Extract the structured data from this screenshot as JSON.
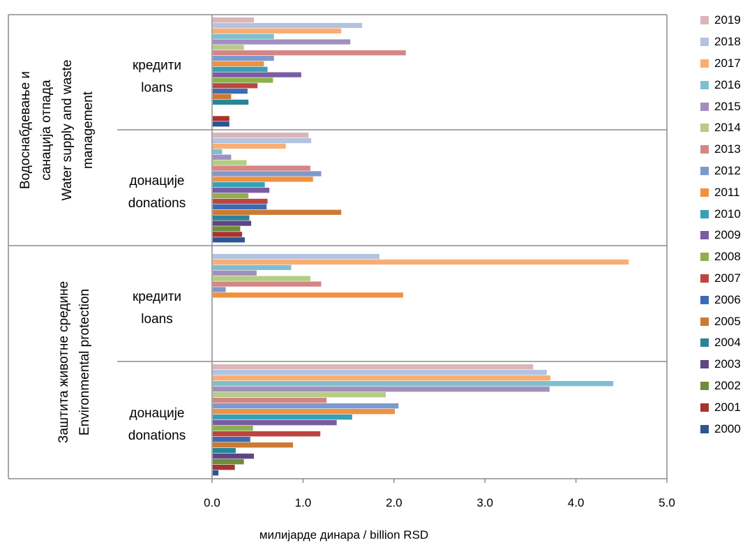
{
  "chart_data": {
    "type": "bar",
    "orientation": "horizontal",
    "xlabel": "милијарде динара / billion RSD",
    "xlim": [
      0,
      5
    ],
    "xticks": [
      "0.0",
      "1.0",
      "2.0",
      "3.0",
      "4.0",
      "5.0"
    ],
    "grid": false,
    "legend_position": "right",
    "groups": [
      {
        "label": [
          "Водоснабдевање и",
          "санација отпада",
          "Water supply and waste",
          "management"
        ],
        "categories": [
          {
            "label": [
              "кредити",
              "loans"
            ],
            "key": "ws_loans"
          },
          {
            "label": [
              "донације",
              "donations"
            ],
            "key": "ws_donations"
          }
        ]
      },
      {
        "label": [
          "Заштита животне средине",
          "Environmental protection"
        ],
        "categories": [
          {
            "label": [
              "кредити",
              "loans"
            ],
            "key": "ep_loans"
          },
          {
            "label": [
              "донације",
              "donations"
            ],
            "key": "ep_donations"
          }
        ]
      }
    ],
    "series": [
      {
        "name": "2019",
        "color": "#dab6b8",
        "values": {
          "ws_loans": 0.46,
          "ws_donations": 1.06,
          "ep_loans": 0,
          "ep_donations": 3.53
        }
      },
      {
        "name": "2018",
        "color": "#b4c3df",
        "values": {
          "ws_loans": 1.65,
          "ws_donations": 1.09,
          "ep_loans": 1.84,
          "ep_donations": 3.68
        }
      },
      {
        "name": "2017",
        "color": "#f9ad73",
        "values": {
          "ws_loans": 1.42,
          "ws_donations": 0.81,
          "ep_loans": 4.58,
          "ep_donations": 3.72
        }
      },
      {
        "name": "2016",
        "color": "#7ebfcf",
        "values": {
          "ws_loans": 0.68,
          "ws_donations": 0.11,
          "ep_loans": 0.87,
          "ep_donations": 4.41
        }
      },
      {
        "name": "2015",
        "color": "#a28fbd",
        "values": {
          "ws_loans": 1.52,
          "ws_donations": 0.21,
          "ep_loans": 0.49,
          "ep_donations": 3.71
        }
      },
      {
        "name": "2014",
        "color": "#b5cc86",
        "values": {
          "ws_loans": 0.35,
          "ws_donations": 0.38,
          "ep_loans": 1.08,
          "ep_donations": 1.91
        }
      },
      {
        "name": "2013",
        "color": "#d48685",
        "values": {
          "ws_loans": 2.13,
          "ws_donations": 1.08,
          "ep_loans": 1.2,
          "ep_donations": 1.26
        }
      },
      {
        "name": "2012",
        "color": "#7e99cc",
        "values": {
          "ws_loans": 0.68,
          "ws_donations": 1.2,
          "ep_loans": 0.15,
          "ep_donations": 2.05
        }
      },
      {
        "name": "2011",
        "color": "#f0913e",
        "values": {
          "ws_loans": 0.57,
          "ws_donations": 1.11,
          "ep_loans": 2.1,
          "ep_donations": 2.01
        }
      },
      {
        "name": "2010",
        "color": "#35a1b7",
        "values": {
          "ws_loans": 0.61,
          "ws_donations": 0.58,
          "ep_loans": 0,
          "ep_donations": 1.54
        }
      },
      {
        "name": "2009",
        "color": "#7a5ca3",
        "values": {
          "ws_loans": 0.98,
          "ws_donations": 0.63,
          "ep_loans": 0,
          "ep_donations": 1.37
        }
      },
      {
        "name": "2008",
        "color": "#8eb04c",
        "values": {
          "ws_loans": 0.67,
          "ws_donations": 0.4,
          "ep_loans": 0,
          "ep_donations": 0.45
        }
      },
      {
        "name": "2007",
        "color": "#bc4541",
        "values": {
          "ws_loans": 0.5,
          "ws_donations": 0.61,
          "ep_loans": 0,
          "ep_donations": 1.19
        }
      },
      {
        "name": "2006",
        "color": "#3c6bb3",
        "values": {
          "ws_loans": 0.39,
          "ws_donations": 0.6,
          "ep_loans": 0,
          "ep_donations": 0.42
        }
      },
      {
        "name": "2005",
        "color": "#cc7a33",
        "values": {
          "ws_loans": 0.21,
          "ws_donations": 1.42,
          "ep_loans": 0,
          "ep_donations": 0.89
        }
      },
      {
        "name": "2004",
        "color": "#298596",
        "values": {
          "ws_loans": 0.4,
          "ws_donations": 0.41,
          "ep_loans": 0,
          "ep_donations": 0.26
        }
      },
      {
        "name": "2003",
        "color": "#5e4682",
        "values": {
          "ws_loans": 0,
          "ws_donations": 0.43,
          "ep_loans": 0,
          "ep_donations": 0.46
        }
      },
      {
        "name": "2002",
        "color": "#6e8c3a",
        "values": {
          "ws_loans": 0,
          "ws_donations": 0.31,
          "ep_loans": 0,
          "ep_donations": 0.35
        }
      },
      {
        "name": "2001",
        "color": "#a53330",
        "values": {
          "ws_loans": 0.19,
          "ws_donations": 0.33,
          "ep_loans": 0,
          "ep_donations": 0.25
        }
      },
      {
        "name": "2000",
        "color": "#2b5594",
        "values": {
          "ws_loans": 0.19,
          "ws_donations": 0.36,
          "ep_loans": 0,
          "ep_donations": 0.07
        }
      }
    ]
  }
}
